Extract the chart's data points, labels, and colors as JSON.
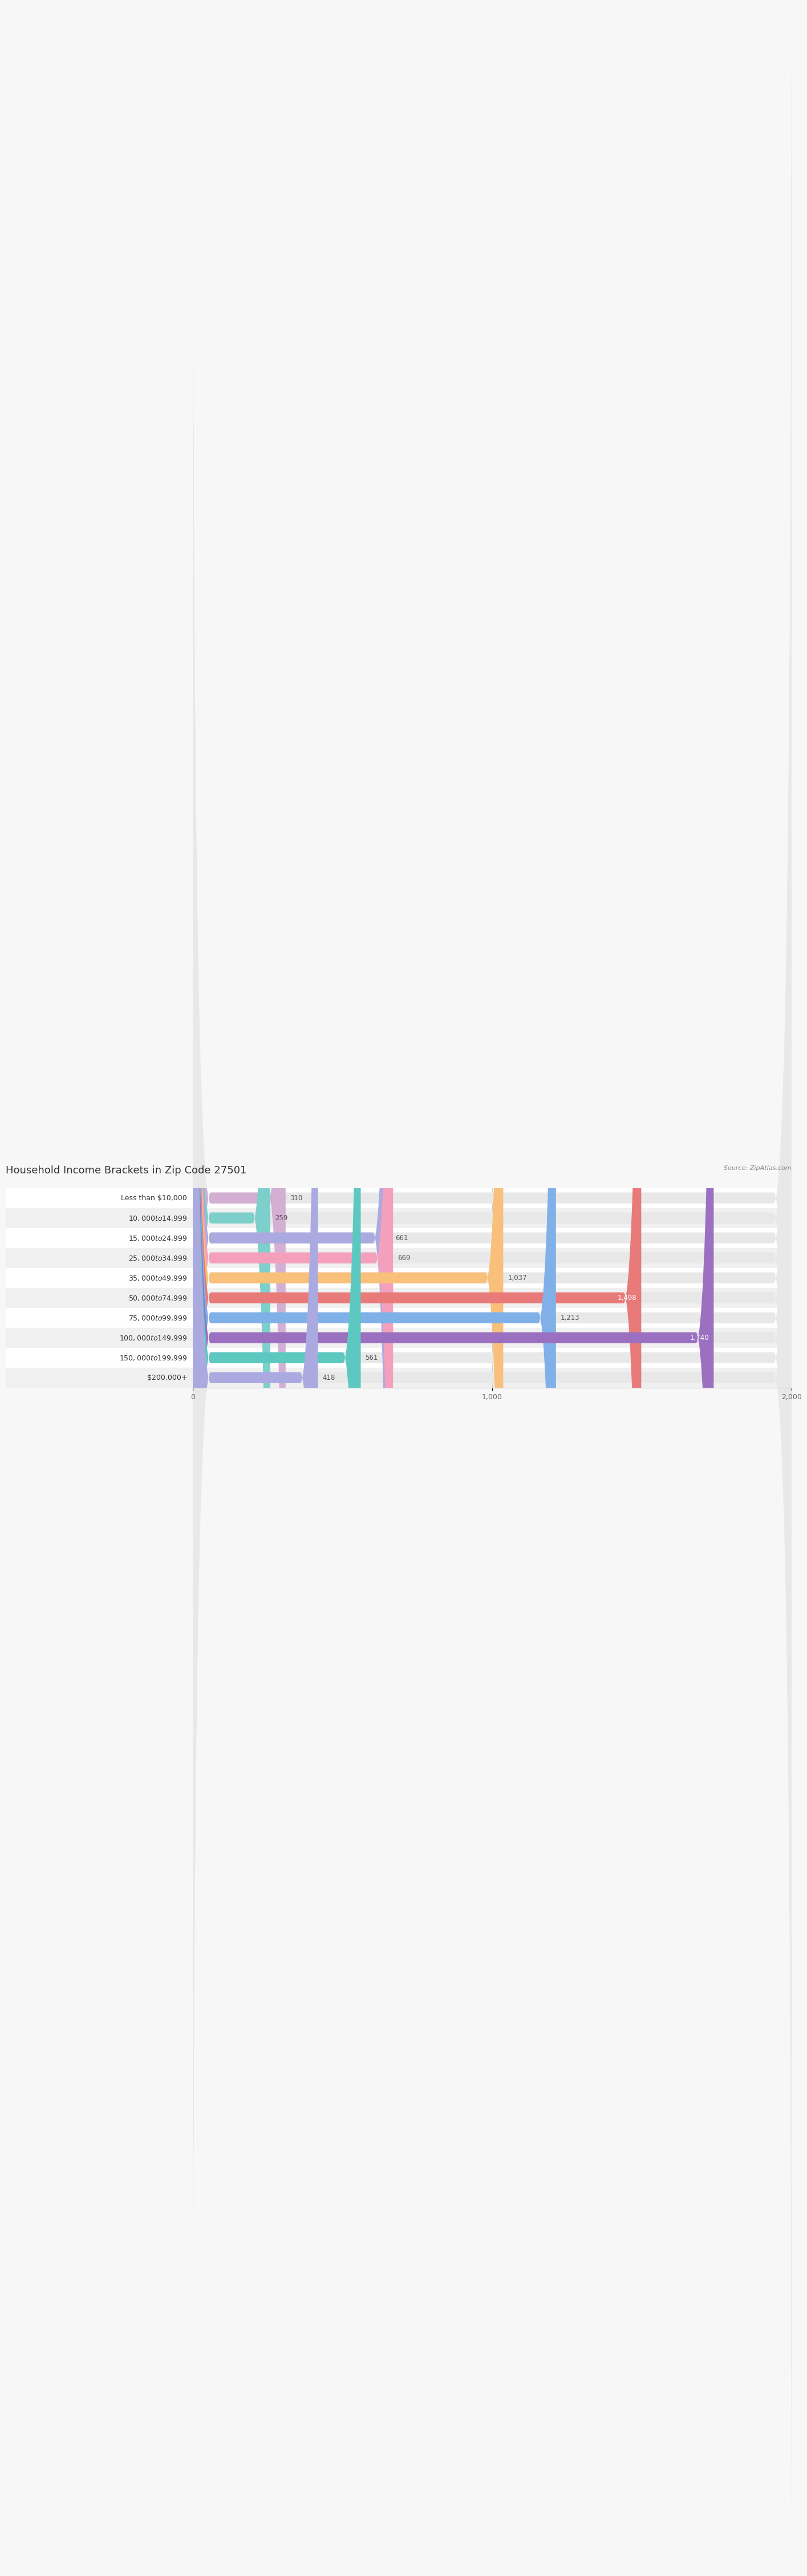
{
  "title": "Household Income Brackets in Zip Code 27501",
  "source": "Source: ZipAtlas.com",
  "categories": [
    "Less than $10,000",
    "$10,000 to $14,999",
    "$15,000 to $24,999",
    "$25,000 to $34,999",
    "$35,000 to $49,999",
    "$50,000 to $74,999",
    "$75,000 to $99,999",
    "$100,000 to $149,999",
    "$150,000 to $199,999",
    "$200,000+"
  ],
  "values": [
    310,
    259,
    661,
    669,
    1037,
    1498,
    1213,
    1740,
    561,
    418
  ],
  "colors": [
    "#d4afd4",
    "#7dcfcb",
    "#aaaae0",
    "#f4a0bc",
    "#f8c07a",
    "#e87a7a",
    "#80b0e8",
    "#9b70c0",
    "#5cc8c0",
    "#aaaae0"
  ],
  "xlim": [
    0,
    2000
  ],
  "xticks": [
    0,
    1000,
    2000
  ],
  "xtick_labels": [
    "0",
    "1,000",
    "2,000"
  ],
  "background_color": "#f7f7f7",
  "row_colors": [
    "#ffffff",
    "#f0f0f0"
  ],
  "bar_bg_color": "#e8e8e8",
  "title_fontsize": 13,
  "label_fontsize": 9,
  "value_fontsize": 8.5,
  "bar_height": 0.55,
  "value_threshold_inside": 1300
}
